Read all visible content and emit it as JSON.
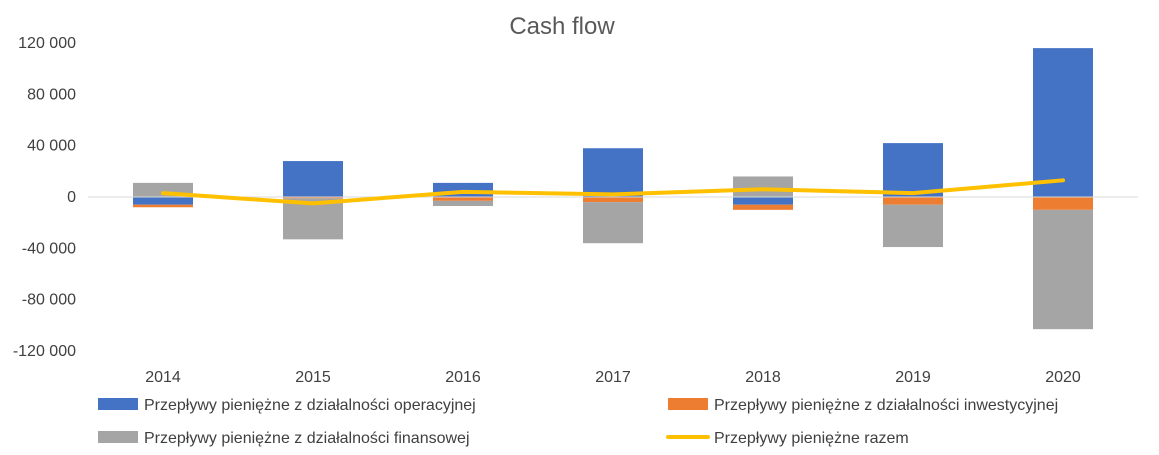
{
  "chart_data": {
    "type": "bar",
    "title": "Cash flow",
    "categories": [
      "2014",
      "2015",
      "2016",
      "2017",
      "2018",
      "2019",
      "2020"
    ],
    "ylim": [
      -120000,
      120000
    ],
    "yticks": [
      120000,
      80000,
      40000,
      0,
      -40000,
      -80000,
      -120000
    ],
    "ytick_labels": [
      "120 000",
      "80 000",
      "40 000",
      "0",
      "-40 000",
      "-80 000",
      "-120 000"
    ],
    "legend_position": "bottom",
    "grid": false,
    "series": [
      {
        "name": "Przepływy pieniężne z działalności operacyjnej",
        "kind": "bar",
        "color": "#4472C4",
        "values": [
          -6000,
          28000,
          11000,
          38000,
          -6000,
          42000,
          116000
        ]
      },
      {
        "name": "Przepływy pieniężne z działalności inwestycyjnej",
        "kind": "bar",
        "color": "#ED7D31",
        "values": [
          -2000,
          -1000,
          -3000,
          -4000,
          -4000,
          -6000,
          -10000
        ]
      },
      {
        "name": "Przepływy pieniężne z działalności finansowej",
        "kind": "bar",
        "color": "#A5A5A5",
        "values": [
          11000,
          -32000,
          -4000,
          -32000,
          16000,
          -33000,
          -93000
        ]
      },
      {
        "name": "Przepływy pieniężne razem",
        "kind": "line",
        "color": "#FFC000",
        "values": [
          3000,
          -5000,
          4000,
          2000,
          6000,
          3000,
          13000
        ]
      }
    ]
  }
}
